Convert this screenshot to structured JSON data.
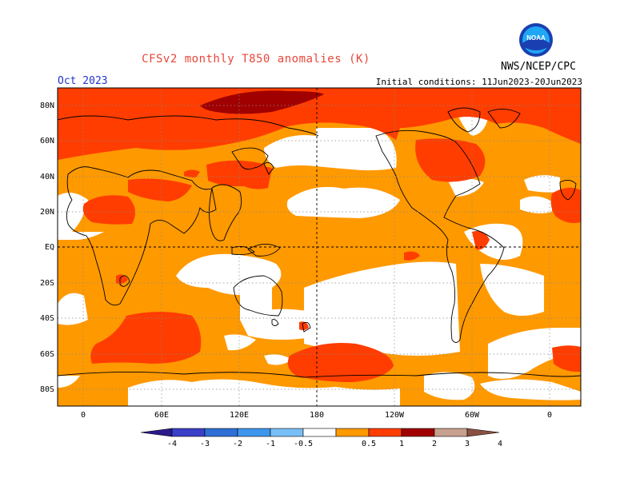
{
  "header": {
    "title": "CFSv2 monthly T850 anomalies (K)",
    "org": "NWS/NCEP/CPC",
    "logo_text": "NOAA",
    "month": "Oct 2023",
    "init": "Initial conditions: 11Jun2023-20Jun2023"
  },
  "axes": {
    "lat_labels": [
      "80N",
      "60N",
      "40N",
      "20N",
      "EQ",
      "20S",
      "40S",
      "60S",
      "80S"
    ],
    "lon_labels": [
      "0",
      "60E",
      "120E",
      "180",
      "120W",
      "60W",
      "0"
    ]
  },
  "colorbar": {
    "ticks": [
      "-4",
      "-3",
      "-2",
      "-1",
      "-0.5",
      "0.5",
      "1",
      "2",
      "3",
      "4"
    ],
    "colors": [
      "#2a1a8c",
      "#3a3fc8",
      "#2f6fd6",
      "#3c96ec",
      "#79bff7",
      "#ffffff",
      "#ff9900",
      "#ff3d00",
      "#a00000",
      "#c7a08f",
      "#8a5040"
    ]
  },
  "map_colors": {
    "ocean_neutral": "#ffffff",
    "warm1": "#ff9900",
    "warm2": "#ff3d00",
    "warm3": "#a00000"
  }
}
